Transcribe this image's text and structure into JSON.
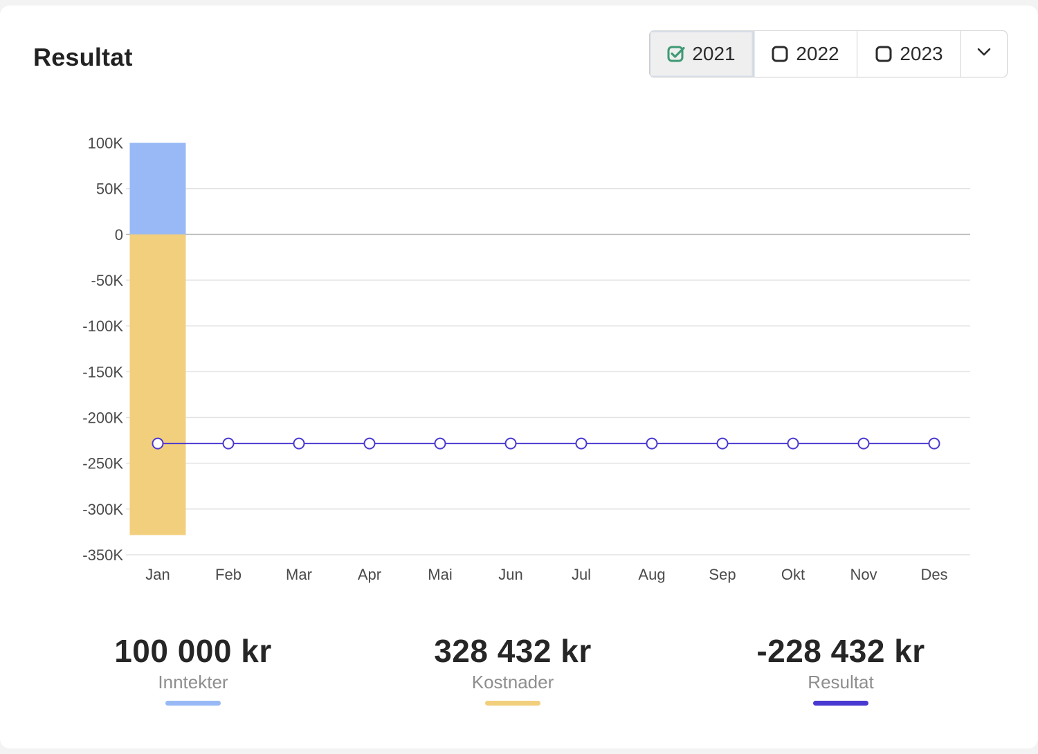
{
  "header": {
    "title": "Resultat"
  },
  "year_selector": {
    "years": [
      {
        "label": "2021",
        "checked": true
      },
      {
        "label": "2022",
        "checked": false
      },
      {
        "label": "2023",
        "checked": false
      }
    ],
    "dropdown_icon": "chevron-down-icon"
  },
  "colors": {
    "income": "#98b9f5",
    "costs": "#f2cf7d",
    "result": "#4a39d0",
    "check": "#3e9a74",
    "grid": "#e3e3e3",
    "zero_line": "#bdbdbd"
  },
  "chart_data": {
    "type": "bar",
    "categories": [
      "Jan",
      "Feb",
      "Mar",
      "Apr",
      "Mai",
      "Jun",
      "Jul",
      "Aug",
      "Sep",
      "Okt",
      "Nov",
      "Des"
    ],
    "y_ticks": [
      100000,
      50000,
      0,
      -50000,
      -100000,
      -150000,
      -200000,
      -250000,
      -300000,
      -350000
    ],
    "y_tick_labels": [
      "100K",
      "50K",
      "0",
      "-50K",
      "-100K",
      "-150K",
      "-200K",
      "-250K",
      "-300K",
      "-350K"
    ],
    "ylim": [
      -350000,
      100000
    ],
    "series": [
      {
        "name": "Inntekter",
        "type": "bar",
        "values": [
          100000,
          0,
          0,
          0,
          0,
          0,
          0,
          0,
          0,
          0,
          0,
          0
        ]
      },
      {
        "name": "Kostnader",
        "type": "bar",
        "values": [
          -328432,
          0,
          0,
          0,
          0,
          0,
          0,
          0,
          0,
          0,
          0,
          0
        ]
      },
      {
        "name": "Resultat",
        "type": "line",
        "values": [
          -228432,
          -228432,
          -228432,
          -228432,
          -228432,
          -228432,
          -228432,
          -228432,
          -228432,
          -228432,
          -228432,
          -228432
        ]
      }
    ],
    "title": "Resultat",
    "xlabel": "",
    "ylabel": ""
  },
  "summary": [
    {
      "amount": "100 000 kr",
      "label": "Inntekter"
    },
    {
      "amount": "328 432 kr",
      "label": "Kostnader"
    },
    {
      "amount": "-228 432 kr",
      "label": "Resultat"
    }
  ]
}
